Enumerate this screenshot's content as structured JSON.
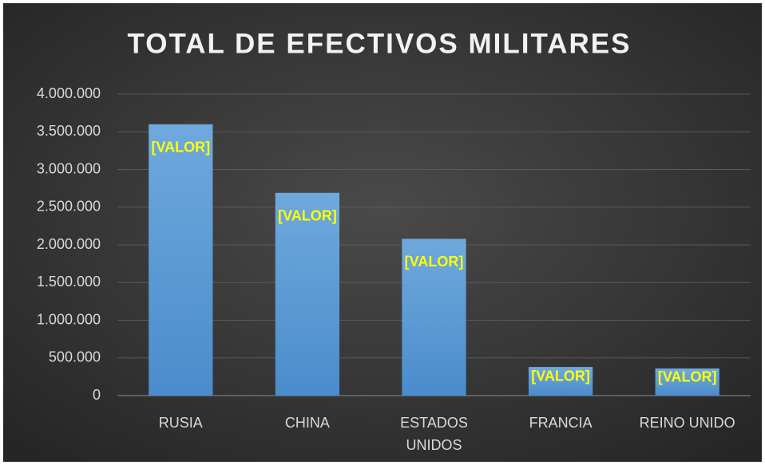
{
  "chart_data": {
    "type": "bar",
    "title": "TOTAL DE EFECTIVOS MILITARES",
    "categories": [
      "RUSIA",
      "CHINA",
      "ESTADOS UNIDOS",
      "FRANCIA",
      "REINO UNIDO"
    ],
    "values": [
      3600000,
      2690000,
      2080000,
      380000,
      360000
    ],
    "value_labels": [
      "[VALOR]",
      "[VALOR]",
      "[VALOR]",
      "[VALOR]",
      "[VALOR]"
    ],
    "color": "#5b9bd5",
    "ylim": [
      0,
      4000000
    ],
    "yticks": [
      0,
      {
        "value": 500000,
        "label": "500.000"
      },
      {
        "value": 1000000,
        "label": "1.000.000"
      },
      {
        "value": 1500000,
        "label": "1.500.000"
      },
      {
        "value": 2000000,
        "label": "2.000.000"
      },
      {
        "value": 2500000,
        "label": "2.500.000"
      },
      {
        "value": 3000000,
        "label": "3.000.000"
      },
      {
        "value": 3500000,
        "label": "3.500.000"
      },
      {
        "value": 4000000,
        "label": "4.000.000"
      }
    ],
    "grid": true
  }
}
